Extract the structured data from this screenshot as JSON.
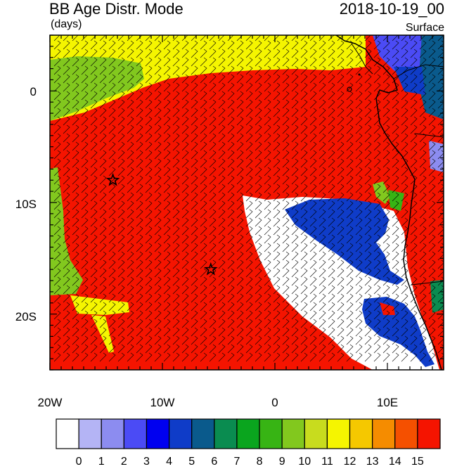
{
  "header": {
    "title": "BB Age Distr. Mode",
    "units": "(days)",
    "datetime": "2018-10-19_00",
    "level": "Surface"
  },
  "axes": {
    "x_ticks": [
      "20W",
      "10W",
      "0",
      "10E"
    ],
    "y_ticks": [
      "0",
      "10S",
      "20S"
    ]
  },
  "map": {
    "lon_range": [
      -20,
      15
    ],
    "lat_range": [
      -25,
      5
    ],
    "markers": [
      {
        "name": "star",
        "lon": -14.4,
        "lat": -8.0
      },
      {
        "name": "star",
        "lon": -5.7,
        "lat": -16.0
      }
    ]
  },
  "colorbar": {
    "labels": [
      "0",
      "1",
      "2",
      "3",
      "4",
      "5",
      "6",
      "7",
      "8",
      "9",
      "10",
      "11",
      "12",
      "13",
      "14",
      "15"
    ],
    "colors": [
      "#ffffff",
      "#b4b4f5",
      "#8c8cf0",
      "#4b4bf5",
      "#0000f0",
      "#0f3cc8",
      "#0a5a8c",
      "#0a8c50",
      "#0aa51e",
      "#37b414",
      "#82c81e",
      "#c8dc1e",
      "#f5f500",
      "#f5c800",
      "#f58c00",
      "#f55000",
      "#f51400"
    ]
  }
}
